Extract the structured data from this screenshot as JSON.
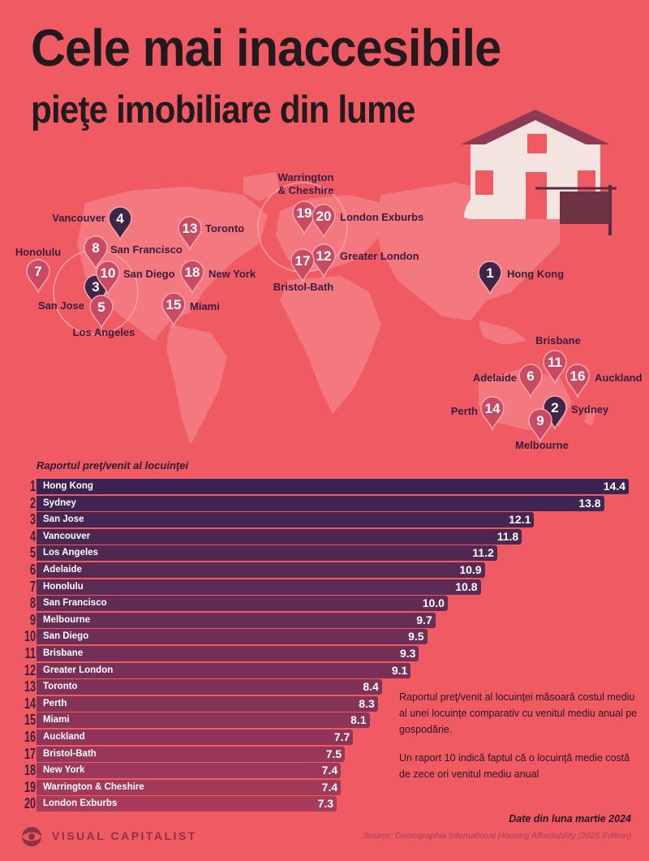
{
  "title_line1": "Cele mai inaccesibile",
  "title_line2": "pieţe imobiliare din lume",
  "colors": {
    "background": "#f05a63",
    "bar_top": "#3a2350",
    "bar_bottom": "#a83a5a",
    "pin_dark": "#3e2649",
    "pin_light": "#c94a63"
  },
  "map_pins": [
    {
      "rank": "1",
      "label": "Hong Kong"
    },
    {
      "rank": "2",
      "label": "Sydney"
    },
    {
      "rank": "3",
      "label": "San Jose"
    },
    {
      "rank": "4",
      "label": "Vancouver"
    },
    {
      "rank": "5",
      "label": "Los Angeles"
    },
    {
      "rank": "6",
      "label": "Adelaide"
    },
    {
      "rank": "7",
      "label": "Honolulu"
    },
    {
      "rank": "8",
      "label": "San Francisco"
    },
    {
      "rank": "9",
      "label": "Melbourne"
    },
    {
      "rank": "10",
      "label": "San Diego"
    },
    {
      "rank": "11",
      "label": "Brisbane"
    },
    {
      "rank": "12",
      "label": "Greater London"
    },
    {
      "rank": "13",
      "label": "Toronto"
    },
    {
      "rank": "14",
      "label": "Perth"
    },
    {
      "rank": "15",
      "label": "Miami"
    },
    {
      "rank": "16",
      "label": "Auckland"
    },
    {
      "rank": "17",
      "label": "Bristol-Bath"
    },
    {
      "rank": "18",
      "label": "New York"
    },
    {
      "rank": "19",
      "label": "Warrington & Cheshire"
    },
    {
      "rank": "20",
      "label": "London Exburbs"
    }
  ],
  "chart_data": {
    "type": "bar",
    "title": "Raportul preţ/venit al locuinţei",
    "categories": [
      "Hong Kong",
      "Sydney",
      "San Jose",
      "Vancouver",
      "Los Angeles",
      "Adelaide",
      "Honolulu",
      "San Francisco",
      "Melbourne",
      "San Diego",
      "Brisbane",
      "Greater London",
      "Toronto",
      "Perth",
      "Miami",
      "Auckland",
      "Bristol-Bath",
      "New York",
      "Warrington & Cheshire",
      "London Exburbs"
    ],
    "ranks": [
      "1",
      "2",
      "3",
      "4",
      "5",
      "6",
      "7",
      "8",
      "9",
      "10",
      "11",
      "12",
      "13",
      "14",
      "15",
      "16",
      "17",
      "18",
      "19",
      "20"
    ],
    "values": [
      14.4,
      13.8,
      12.1,
      11.8,
      11.2,
      10.9,
      10.8,
      10.0,
      9.7,
      9.5,
      9.3,
      9.1,
      8.4,
      8.3,
      8.1,
      7.7,
      7.5,
      7.4,
      7.4,
      7.3
    ],
    "value_labels": [
      "14.4",
      "13.8",
      "12.1",
      "11.8",
      "11.2",
      "10.9",
      "10.8",
      "10.0",
      "9.7",
      "9.5",
      "9.3",
      "9.1",
      "8.4",
      "8.3",
      "8.1",
      "7.7",
      "7.5",
      "7.4",
      "7.4",
      "7.3"
    ],
    "xlim": [
      0,
      14.4
    ]
  },
  "note_1": "Raportul preţ/venit al locuinţei măsoară costul mediu al unei locuinţe comparativ cu venitul mediu anual pe gospodărie.",
  "note_2": "Un raport 10 indică faptul că o locuinţă medie costă de zece ori venitul mediu anual",
  "date_note": "Date din luna martie 2024",
  "source": "Source: Demographia International Housing Affordability (2025 Edition)",
  "brand": "VISUAL CAPITALIST"
}
